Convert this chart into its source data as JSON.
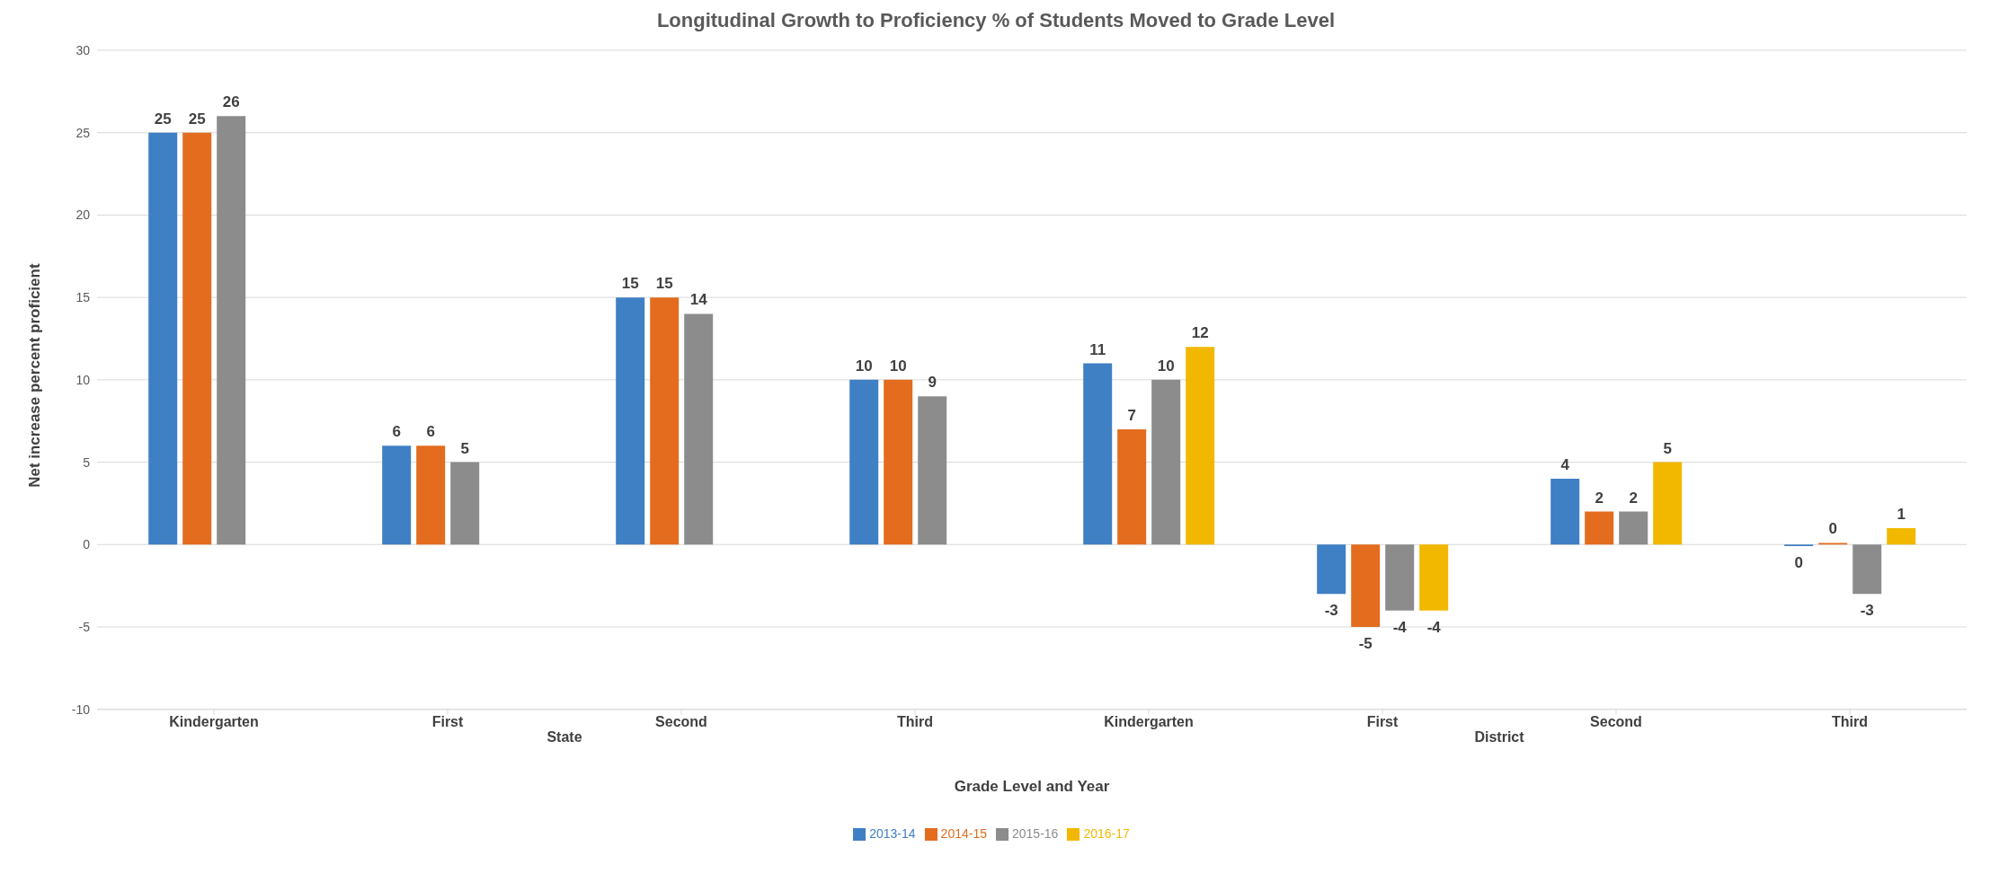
{
  "chart_data": {
    "type": "bar",
    "title": "Longitudinal Growth to Proficiency % of Students Moved to Grade Level",
    "xlabel": "Grade Level and Year",
    "ylabel": "Net increase percent proficient",
    "categories": [
      "Kindergarten",
      "First",
      "Second",
      "Third",
      "Kindergarten",
      "First",
      "Second",
      "Third"
    ],
    "annotations": [
      "State",
      "District"
    ],
    "series": [
      {
        "name": "2013-14",
        "color": "#3f7fc4",
        "values": [
          25,
          6,
          15,
          10,
          11,
          -3,
          4,
          -0.1
        ],
        "value_labels": [
          "25",
          "6",
          "15",
          "10",
          "11",
          "-3",
          "4",
          "0"
        ]
      },
      {
        "name": "2014-15",
        "color": "#e36c1e",
        "values": [
          25,
          6,
          15,
          10,
          7,
          -5,
          2,
          0.1
        ],
        "value_labels": [
          "25",
          "6",
          "15",
          "10",
          "7",
          "-5",
          "2",
          "0"
        ]
      },
      {
        "name": "2015-16",
        "color": "#8c8c8c",
        "values": [
          26,
          5,
          14,
          9,
          10,
          -4,
          2,
          -3
        ],
        "value_labels": [
          "26",
          "5",
          "14",
          "9",
          "10",
          "-4",
          "2",
          "-3"
        ]
      },
      {
        "name": "2016-17",
        "color": "#f2b800",
        "values": [
          null,
          null,
          null,
          null,
          12,
          -4,
          5,
          1
        ],
        "value_labels": [
          null,
          null,
          null,
          null,
          "12",
          "-4",
          "5",
          "1"
        ]
      }
    ],
    "ylim": [
      -10,
      30
    ],
    "yticks": [
      -10,
      -5,
      0,
      5,
      10,
      15,
      20,
      25,
      30
    ],
    "grid": "y",
    "legend": "bottom"
  }
}
